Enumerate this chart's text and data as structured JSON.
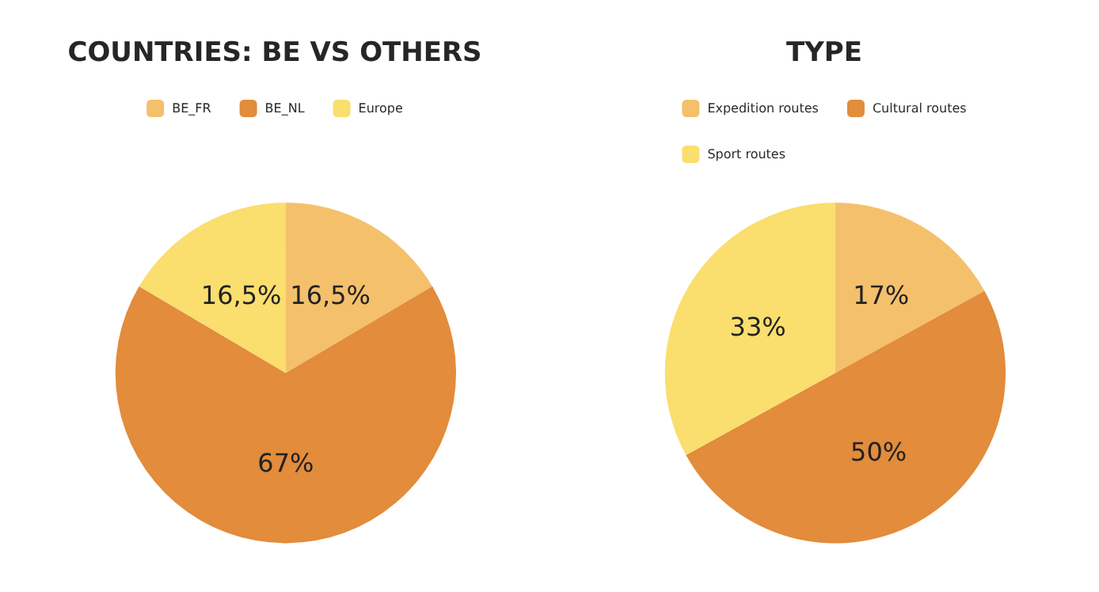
{
  "chart_data": [
    {
      "type": "pie",
      "title": "COUNTRIES: BE VS OTHERS",
      "categories": [
        "BE_FR",
        "BE_NL",
        "Europe"
      ],
      "values": [
        16.5,
        67,
        16.5
      ],
      "value_labels": [
        "16,5%",
        "67%",
        "16,5%"
      ],
      "colors": [
        "#f4c06c",
        "#e28c3c",
        "#fade6e"
      ],
      "legend": "top"
    },
    {
      "type": "pie",
      "title": "TYPE",
      "categories": [
        "Expedition routes",
        "Cultural routes",
        "Sport routes"
      ],
      "values": [
        17,
        50,
        33
      ],
      "value_labels": [
        "17%",
        "50%",
        "33%"
      ],
      "colors": [
        "#f4c06c",
        "#e28c3c",
        "#fade6e"
      ],
      "legend": "top"
    }
  ]
}
